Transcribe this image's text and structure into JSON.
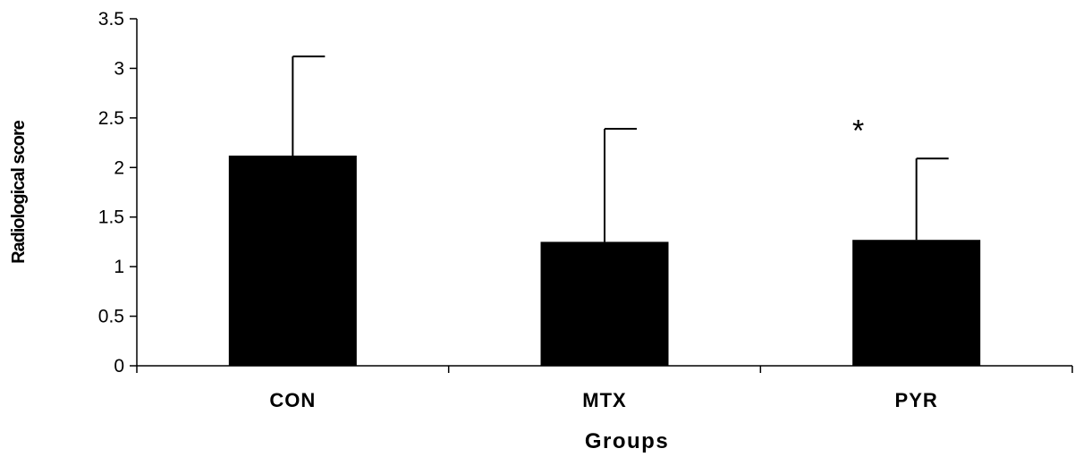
{
  "chart_data": {
    "type": "bar",
    "title": "",
    "xlabel": "Groups",
    "ylabel": "Radiological score",
    "categories": [
      "CON",
      "MTX",
      "PYR"
    ],
    "values": [
      2.12,
      1.25,
      1.27
    ],
    "error_upper": [
      3.12,
      2.39,
      2.09
    ],
    "ylim": [
      0,
      3.5
    ],
    "yticks": [
      "0",
      "0.5",
      "1",
      "1.5",
      "2",
      "2.5",
      "3",
      "3.5"
    ],
    "grid": false,
    "legend": "none",
    "bar_color": "#000000",
    "annotations": [
      {
        "category": "PYR",
        "text": "*"
      }
    ]
  }
}
